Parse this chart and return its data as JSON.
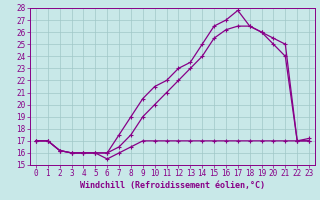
{
  "xlabel": "Windchill (Refroidissement éolien,°C)",
  "xlim": [
    -0.5,
    23.5
  ],
  "ylim": [
    15,
    28
  ],
  "yticks": [
    15,
    16,
    17,
    18,
    19,
    20,
    21,
    22,
    23,
    24,
    25,
    26,
    27,
    28
  ],
  "xticks": [
    0,
    1,
    2,
    3,
    4,
    5,
    6,
    7,
    8,
    9,
    10,
    11,
    12,
    13,
    14,
    15,
    16,
    17,
    18,
    19,
    20,
    21,
    22,
    23
  ],
  "background_color": "#c8e8e8",
  "grid_color": "#a0c8c8",
  "line_color": "#880088",
  "line1_x": [
    0,
    1,
    2,
    3,
    4,
    5,
    6,
    7,
    8,
    9,
    10,
    11,
    12,
    13,
    14,
    15,
    16,
    17,
    18,
    19,
    20,
    21,
    22,
    23
  ],
  "line1_y": [
    17,
    17,
    16.2,
    16,
    16,
    16,
    15.5,
    16,
    16.5,
    17,
    17,
    17,
    17,
    17,
    17,
    17,
    17,
    17,
    17,
    17,
    17,
    17,
    17,
    17
  ],
  "line2_x": [
    0,
    1,
    2,
    3,
    4,
    5,
    6,
    7,
    8,
    9,
    10,
    11,
    12,
    13,
    14,
    15,
    16,
    17,
    18,
    19,
    20,
    21,
    22,
    23
  ],
  "line2_y": [
    17,
    17,
    16.2,
    16,
    16,
    16,
    16,
    17.5,
    19,
    20.5,
    21.5,
    22,
    23,
    23.5,
    25,
    26.5,
    27,
    27.8,
    26.5,
    26,
    25,
    24,
    17,
    17
  ],
  "line3_x": [
    0,
    1,
    2,
    3,
    4,
    5,
    6,
    7,
    8,
    9,
    10,
    11,
    12,
    13,
    14,
    15,
    16,
    17,
    18,
    19,
    20,
    21,
    22,
    23
  ],
  "line3_y": [
    17,
    17,
    16.2,
    16,
    16,
    16,
    16,
    16.5,
    17.5,
    19,
    20,
    21,
    22,
    23,
    24,
    25.5,
    26.2,
    26.5,
    26.5,
    26,
    25.5,
    25,
    17,
    17.2
  ]
}
